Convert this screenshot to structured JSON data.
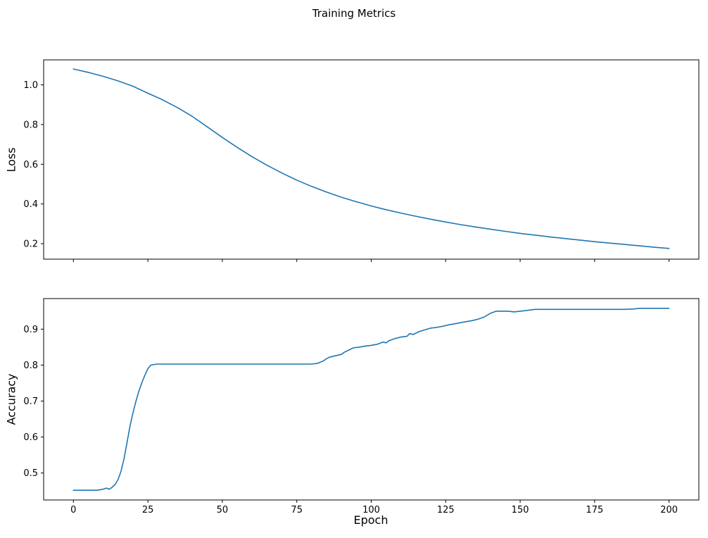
{
  "figure": {
    "title": "Training Metrics",
    "background": "#ffffff",
    "line_color": "#1f77b4"
  },
  "chart_data": [
    {
      "type": "line",
      "series_name": "loss",
      "ylabel": "Loss",
      "xlabel": "",
      "xlim": [
        -10,
        210
      ],
      "ylim": [
        0.122,
        1.126
      ],
      "xticks": [
        0,
        25,
        50,
        75,
        100,
        125,
        150,
        175,
        200
      ],
      "xticklabels": [
        "0",
        "25",
        "50",
        "75",
        "100",
        "125",
        "150",
        "175",
        "200"
      ],
      "show_xtick_labels": false,
      "yticks": [
        0.2,
        0.4,
        0.6,
        0.8,
        1.0
      ],
      "yticklabels": [
        "0.2",
        "0.4",
        "0.6",
        "0.8",
        "1.0"
      ],
      "grid": false,
      "legend": null,
      "x": [
        0,
        5,
        10,
        15,
        20,
        25,
        28,
        30,
        35,
        40,
        45,
        50,
        55,
        60,
        65,
        70,
        75,
        80,
        85,
        90,
        95,
        100,
        105,
        110,
        115,
        120,
        125,
        130,
        135,
        140,
        145,
        150,
        155,
        160,
        165,
        170,
        175,
        180,
        185,
        190,
        195,
        200
      ],
      "y": [
        1.08,
        1.063,
        1.043,
        1.02,
        0.993,
        0.958,
        0.938,
        0.924,
        0.885,
        0.84,
        0.788,
        0.735,
        0.685,
        0.638,
        0.595,
        0.556,
        0.52,
        0.488,
        0.46,
        0.434,
        0.411,
        0.39,
        0.371,
        0.354,
        0.338,
        0.323,
        0.309,
        0.296,
        0.284,
        0.273,
        0.262,
        0.252,
        0.243,
        0.234,
        0.226,
        0.218,
        0.21,
        0.203,
        0.196,
        0.189,
        0.182,
        0.176
      ]
    },
    {
      "type": "line",
      "series_name": "accuracy",
      "ylabel": "Accuracy",
      "xlabel": "Epoch",
      "xlim": [
        -10,
        210
      ],
      "ylim": [
        0.425,
        0.985
      ],
      "xticks": [
        0,
        25,
        50,
        75,
        100,
        125,
        150,
        175,
        200
      ],
      "xticklabels": [
        "0",
        "25",
        "50",
        "75",
        "100",
        "125",
        "150",
        "175",
        "200"
      ],
      "show_xtick_labels": true,
      "yticks": [
        0.5,
        0.6,
        0.7,
        0.8,
        0.9
      ],
      "yticklabels": [
        "0.5",
        "0.6",
        "0.7",
        "0.8",
        "0.9"
      ],
      "grid": false,
      "legend": null,
      "x": [
        0,
        4,
        8,
        10,
        11,
        12,
        13,
        14,
        15,
        16,
        17,
        18,
        19,
        20,
        21,
        22,
        23,
        24,
        25,
        26,
        28,
        30,
        40,
        50,
        60,
        70,
        80,
        82,
        84,
        85,
        86,
        88,
        90,
        91,
        92,
        94,
        96,
        98,
        100,
        102,
        104,
        105,
        106,
        108,
        110,
        112,
        113,
        114,
        116,
        118,
        120,
        122,
        124,
        126,
        128,
        130,
        132,
        134,
        136,
        138,
        140,
        142,
        144,
        146,
        148,
        150,
        152,
        155,
        158,
        160,
        165,
        170,
        175,
        180,
        185,
        188,
        190,
        195,
        200
      ],
      "y": [
        0.452,
        0.452,
        0.452,
        0.455,
        0.458,
        0.455,
        0.46,
        0.468,
        0.482,
        0.505,
        0.54,
        0.585,
        0.63,
        0.668,
        0.7,
        0.728,
        0.752,
        0.772,
        0.79,
        0.8,
        0.803,
        0.803,
        0.803,
        0.803,
        0.803,
        0.803,
        0.803,
        0.805,
        0.812,
        0.818,
        0.822,
        0.826,
        0.83,
        0.836,
        0.84,
        0.848,
        0.85,
        0.853,
        0.855,
        0.858,
        0.864,
        0.862,
        0.868,
        0.874,
        0.878,
        0.88,
        0.888,
        0.885,
        0.893,
        0.898,
        0.903,
        0.905,
        0.908,
        0.912,
        0.915,
        0.918,
        0.921,
        0.924,
        0.928,
        0.934,
        0.944,
        0.95,
        0.95,
        0.95,
        0.948,
        0.95,
        0.952,
        0.955,
        0.955,
        0.955,
        0.955,
        0.955,
        0.955,
        0.955,
        0.955,
        0.956,
        0.958,
        0.958,
        0.958
      ]
    }
  ]
}
